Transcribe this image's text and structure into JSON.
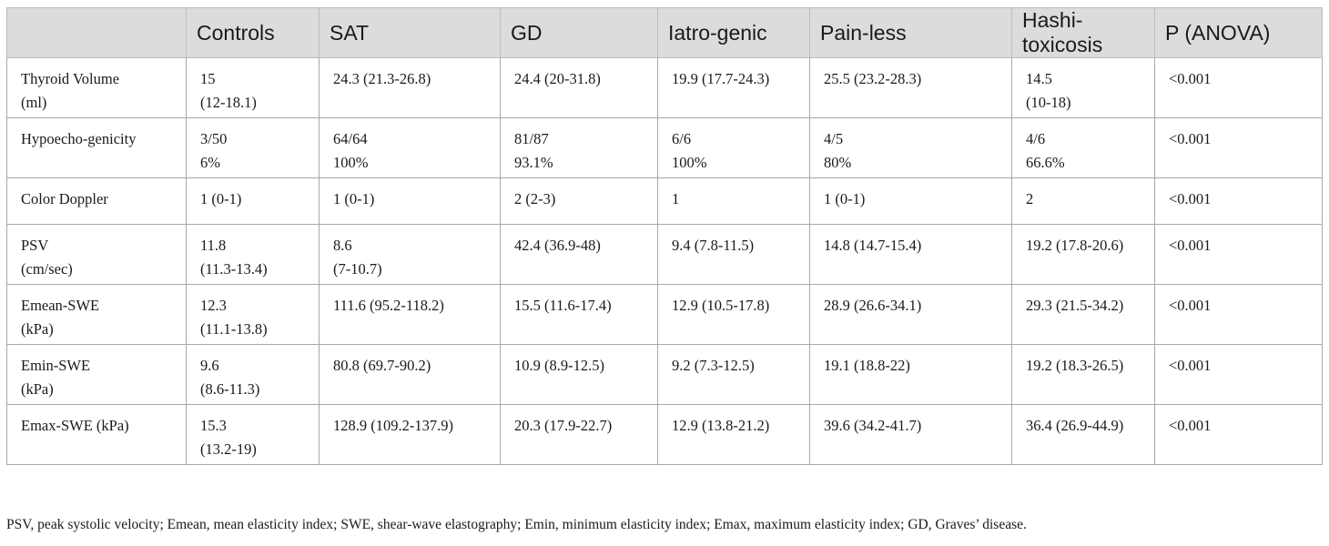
{
  "table": {
    "headers": [
      "",
      "Controls",
      "SAT",
      "GD",
      "Iatro-genic",
      "Pain-less",
      "Hashi-toxicosis",
      "P (ANOVA)"
    ],
    "rows": [
      {
        "label": [
          "Thyroid Volume",
          "(ml)"
        ],
        "cells": [
          [
            "15",
            "(12-18.1)"
          ],
          [
            "24.3 (21.3-26.8)",
            ""
          ],
          [
            "24.4 (20-31.8)",
            ""
          ],
          [
            "19.9 (17.7-24.3)",
            ""
          ],
          [
            "25.5 (23.2-28.3)",
            ""
          ],
          [
            "14.5",
            "(10-18)"
          ],
          [
            "<0.001",
            ""
          ]
        ]
      },
      {
        "label": [
          "Hypoecho-genicity",
          ""
        ],
        "cells": [
          [
            "3/50",
            "6%"
          ],
          [
            "64/64",
            "100%"
          ],
          [
            "81/87",
            "93.1%"
          ],
          [
            "6/6",
            "100%"
          ],
          [
            "4/5",
            "80%"
          ],
          [
            "4/6",
            "66.6%"
          ],
          [
            "<0.001",
            ""
          ]
        ]
      },
      {
        "label": [
          "Color Doppler",
          ""
        ],
        "cells": [
          [
            "1 (0-1)",
            ""
          ],
          [
            "1 (0-1)",
            ""
          ],
          [
            "2 (2-3)",
            ""
          ],
          [
            "1",
            ""
          ],
          [
            "1 (0-1)",
            ""
          ],
          [
            "2",
            ""
          ],
          [
            "<0.001",
            ""
          ]
        ]
      },
      {
        "label": [
          "PSV",
          "(cm/sec)"
        ],
        "cells": [
          [
            "11.8",
            "(11.3-13.4)"
          ],
          [
            "8.6",
            "(7-10.7)"
          ],
          [
            "42.4 (36.9-48)",
            ""
          ],
          [
            "9.4 (7.8-11.5)",
            ""
          ],
          [
            "14.8 (14.7-15.4)",
            ""
          ],
          [
            "19.2 (17.8-20.6)",
            ""
          ],
          [
            "<0.001",
            ""
          ]
        ]
      },
      {
        "label": [
          "Emean-SWE",
          "(kPa)"
        ],
        "cells": [
          [
            "12.3",
            "(11.1-13.8)"
          ],
          [
            "111.6 (95.2-118.2)",
            ""
          ],
          [
            "15.5 (11.6-17.4)",
            ""
          ],
          [
            "12.9 (10.5-17.8)",
            ""
          ],
          [
            "28.9 (26.6-34.1)",
            ""
          ],
          [
            "29.3 (21.5-34.2)",
            ""
          ],
          [
            "<0.001",
            ""
          ]
        ]
      },
      {
        "label": [
          "Emin-SWE",
          "(kPa)"
        ],
        "cells": [
          [
            "9.6",
            "(8.6-11.3)"
          ],
          [
            "80.8 (69.7-90.2)",
            ""
          ],
          [
            "10.9 (8.9-12.5)",
            ""
          ],
          [
            "9.2 (7.3-12.5)",
            ""
          ],
          [
            "19.1 (18.8-22)",
            ""
          ],
          [
            "19.2 (18.3-26.5)",
            ""
          ],
          [
            "<0.001",
            ""
          ]
        ]
      },
      {
        "label": [
          "Emax-SWE (kPa)",
          ""
        ],
        "cells": [
          [
            "15.3",
            "(13.2-19)"
          ],
          [
            "128.9 (109.2-137.9)",
            ""
          ],
          [
            "20.3 (17.9-22.7)",
            ""
          ],
          [
            "12.9 (13.8-21.2)",
            ""
          ],
          [
            "39.6 (34.2-41.7)",
            ""
          ],
          [
            "36.4 (26.9-44.9)",
            ""
          ],
          [
            "<0.001",
            ""
          ]
        ]
      }
    ]
  },
  "footnote": "PSV, peak systolic velocity; Emean, mean elasticity index; SWE, shear-wave elastography; Emin, minimum elasticity index; Emax, maximum elasticity index; GD, Graves’ disease.",
  "colors": {
    "header_bg": "#dcdcdc",
    "border": "#a8a8a8",
    "text": "#1a1a1a"
  }
}
